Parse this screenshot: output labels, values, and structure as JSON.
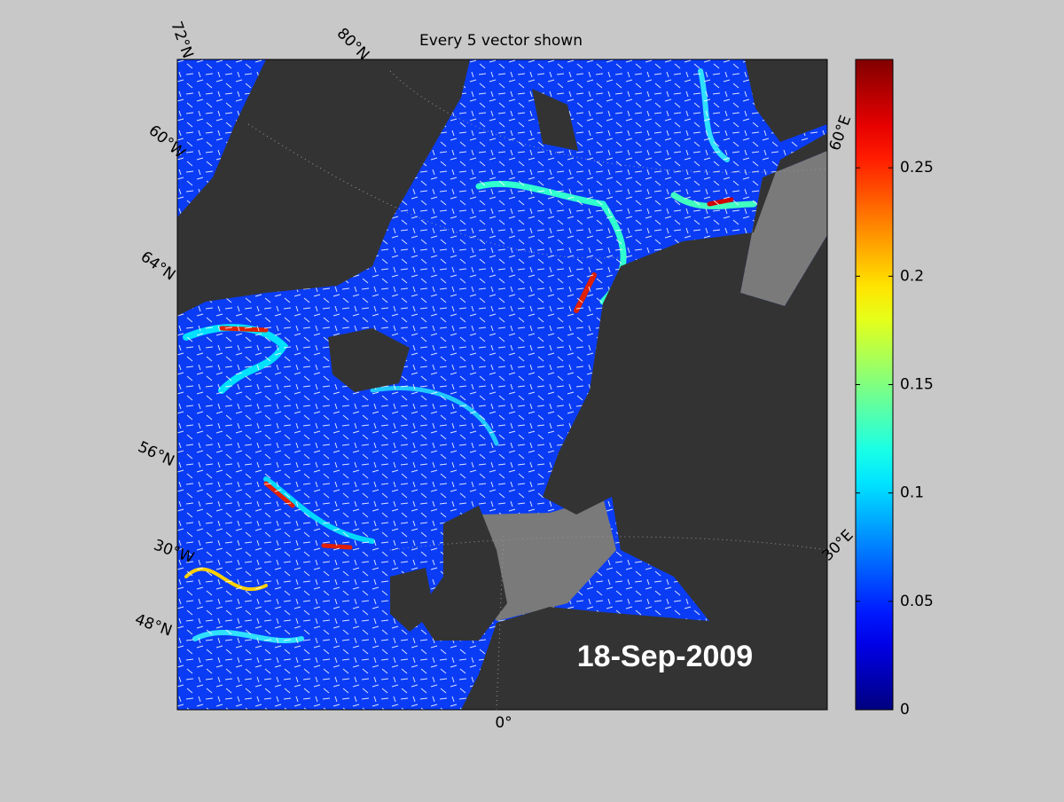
{
  "title": "Every 5 vector shown",
  "date_label": "18-Sep-2009",
  "graticule_labels": [
    "72°N",
    "80°N",
    "60°W",
    "64°N",
    "56°N",
    "30°W",
    "48°N",
    "0°",
    "60°E",
    "30°E"
  ],
  "colorbar": {
    "colormap": "jet",
    "lim": [
      0,
      0.3
    ],
    "ticks": [
      0,
      0.05,
      0.1,
      0.15,
      0.2,
      0.25
    ]
  }
}
